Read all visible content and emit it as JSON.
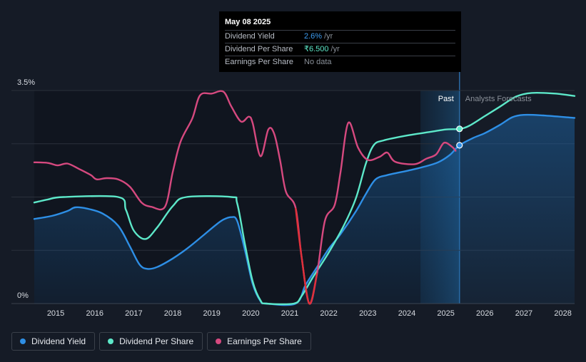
{
  "tooltip": {
    "date": "May 08 2025",
    "rows": [
      {
        "name": "Dividend Yield",
        "value": "2.6%",
        "unit": "/yr",
        "color": "#3d9bf0"
      },
      {
        "name": "Dividend Per Share",
        "value": "₹6.500",
        "unit": "/yr",
        "color": "#5de8c9"
      },
      {
        "name": "Earnings Per Share",
        "value": "No data",
        "unit": "",
        "color": "#8a9099"
      }
    ]
  },
  "regions": {
    "past_label": "Past",
    "forecast_label": "Analysts Forecasts"
  },
  "legend": [
    {
      "label": "Dividend Yield",
      "color": "#2e8fe6"
    },
    {
      "label": "Dividend Per Share",
      "color": "#5de8c9"
    },
    {
      "label": "Earnings Per Share",
      "color": "#d6497f"
    }
  ],
  "chart_data": {
    "type": "line",
    "title": "",
    "xlabel": "",
    "ylabel": "",
    "y_tick_labels": [
      "3.5%",
      "0%"
    ],
    "ylim": [
      0,
      3.5
    ],
    "xlim": [
      2014.45,
      2028.3
    ],
    "x_ticks": [
      2015,
      2016,
      2017,
      2018,
      2019,
      2020,
      2021,
      2022,
      2023,
      2024,
      2025,
      2026,
      2027,
      2028
    ],
    "grid": true,
    "today": 2025.35,
    "past_shade_start": 2024.35,
    "series": [
      {
        "name": "Dividend Yield",
        "color": "#2e8fe6",
        "fill": true,
        "points": [
          [
            2014.45,
            1.39
          ],
          [
            2014.9,
            1.44
          ],
          [
            2015.3,
            1.52
          ],
          [
            2015.5,
            1.58
          ],
          [
            2015.8,
            1.56
          ],
          [
            2016.2,
            1.48
          ],
          [
            2016.6,
            1.28
          ],
          [
            2016.9,
            0.94
          ],
          [
            2017.15,
            0.64
          ],
          [
            2017.35,
            0.57
          ],
          [
            2017.6,
            0.6
          ],
          [
            2018.0,
            0.74
          ],
          [
            2018.4,
            0.92
          ],
          [
            2018.8,
            1.13
          ],
          [
            2019.1,
            1.29
          ],
          [
            2019.3,
            1.38
          ],
          [
            2019.5,
            1.42
          ],
          [
            2019.65,
            1.36
          ],
          [
            2019.85,
            0.88
          ],
          [
            2020.05,
            0.32
          ],
          [
            2020.25,
            0.04
          ],
          [
            2020.4,
            0
          ],
          [
            2021.15,
            0
          ],
          [
            2021.4,
            0.3
          ],
          [
            2021.7,
            0.6
          ],
          [
            2022.0,
            0.9
          ],
          [
            2022.3,
            1.14
          ],
          [
            2022.7,
            1.52
          ],
          [
            2022.95,
            1.8
          ],
          [
            2023.2,
            2.04
          ],
          [
            2023.5,
            2.11
          ],
          [
            2024.0,
            2.18
          ],
          [
            2024.4,
            2.24
          ],
          [
            2024.8,
            2.32
          ],
          [
            2025.1,
            2.44
          ],
          [
            2025.35,
            2.6
          ],
          [
            2025.7,
            2.72
          ],
          [
            2026.0,
            2.8
          ],
          [
            2026.4,
            2.94
          ],
          [
            2026.7,
            3.06
          ],
          [
            2027.0,
            3.1
          ],
          [
            2027.5,
            3.09
          ],
          [
            2028.3,
            3.05
          ]
        ]
      },
      {
        "name": "Dividend Per Share",
        "color": "#5de8c9",
        "fill": false,
        "points": [
          [
            2014.45,
            1.66
          ],
          [
            2014.8,
            1.71
          ],
          [
            2015.2,
            1.75
          ],
          [
            2016.6,
            1.75
          ],
          [
            2016.8,
            1.54
          ],
          [
            2017.0,
            1.2
          ],
          [
            2017.3,
            1.06
          ],
          [
            2017.6,
            1.25
          ],
          [
            2018.0,
            1.6
          ],
          [
            2018.35,
            1.75
          ],
          [
            2019.5,
            1.75
          ],
          [
            2019.65,
            1.65
          ],
          [
            2019.85,
            0.98
          ],
          [
            2020.05,
            0.36
          ],
          [
            2020.25,
            0.05
          ],
          [
            2020.4,
            0
          ],
          [
            2021.1,
            0
          ],
          [
            2021.3,
            0.12
          ],
          [
            2021.6,
            0.44
          ],
          [
            2022.0,
            0.84
          ],
          [
            2022.4,
            1.3
          ],
          [
            2022.7,
            1.74
          ],
          [
            2022.95,
            2.3
          ],
          [
            2023.15,
            2.6
          ],
          [
            2023.4,
            2.68
          ],
          [
            2024.0,
            2.76
          ],
          [
            2024.6,
            2.82
          ],
          [
            2025.0,
            2.86
          ],
          [
            2025.35,
            2.87
          ],
          [
            2025.6,
            2.92
          ],
          [
            2026.0,
            3.08
          ],
          [
            2026.4,
            3.24
          ],
          [
            2026.8,
            3.4
          ],
          [
            2027.2,
            3.46
          ],
          [
            2027.8,
            3.45
          ],
          [
            2028.3,
            3.41
          ]
        ]
      },
      {
        "name": "Earnings Per Share",
        "color": "#d6497f",
        "fill": false,
        "points": [
          [
            2014.45,
            2.32
          ],
          [
            2014.8,
            2.31
          ],
          [
            2015.05,
            2.27
          ],
          [
            2015.3,
            2.3
          ],
          [
            2015.6,
            2.21
          ],
          [
            2015.9,
            2.11
          ],
          [
            2016.05,
            2.04
          ],
          [
            2016.3,
            2.06
          ],
          [
            2016.6,
            2.04
          ],
          [
            2016.9,
            1.92
          ],
          [
            2017.2,
            1.66
          ],
          [
            2017.45,
            1.59
          ],
          [
            2017.8,
            1.59
          ],
          [
            2018.0,
            2.16
          ],
          [
            2018.2,
            2.66
          ],
          [
            2018.5,
            3.04
          ],
          [
            2018.7,
            3.42
          ],
          [
            2019.0,
            3.45
          ],
          [
            2019.3,
            3.48
          ],
          [
            2019.5,
            3.24
          ],
          [
            2019.75,
            2.99
          ],
          [
            2019.95,
            3.07
          ],
          [
            2020.05,
            2.96
          ],
          [
            2020.25,
            2.42
          ],
          [
            2020.45,
            2.86
          ],
          [
            2020.6,
            2.79
          ],
          [
            2020.75,
            2.36
          ],
          [
            2020.9,
            1.84
          ],
          [
            2021.15,
            1.57
          ],
          [
            2021.3,
            0.78
          ],
          [
            2021.5,
            0
          ],
          [
            2021.7,
            0.5
          ],
          [
            2021.9,
            1.36
          ],
          [
            2022.15,
            1.62
          ],
          [
            2022.3,
            2.16
          ],
          [
            2022.5,
            2.97
          ],
          [
            2022.75,
            2.56
          ],
          [
            2023.0,
            2.36
          ],
          [
            2023.3,
            2.41
          ],
          [
            2023.5,
            2.48
          ],
          [
            2023.7,
            2.33
          ],
          [
            2024.2,
            2.29
          ],
          [
            2024.5,
            2.38
          ],
          [
            2024.75,
            2.45
          ],
          [
            2024.95,
            2.64
          ],
          [
            2025.15,
            2.58
          ],
          [
            2025.25,
            2.51
          ]
        ]
      }
    ],
    "markers": [
      {
        "series": "Dividend Per Share",
        "x": 2025.35,
        "y": 2.87
      },
      {
        "series": "Dividend Yield",
        "x": 2025.35,
        "y": 2.6
      }
    ]
  }
}
